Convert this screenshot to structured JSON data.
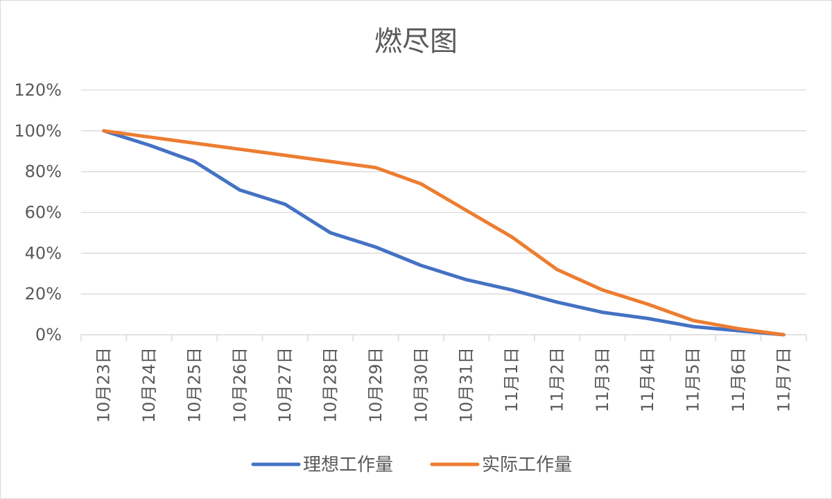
{
  "chart_data": {
    "type": "line",
    "title": "燃尽图",
    "categories": [
      "10月23日",
      "10月24日",
      "10月25日",
      "10月26日",
      "10月27日",
      "10月28日",
      "10月29日",
      "10月30日",
      "10月31日",
      "11月1日",
      "11月2日",
      "11月3日",
      "11月4日",
      "11月5日",
      "11月6日",
      "11月7日"
    ],
    "ylim": [
      0,
      120
    ],
    "y_ticks": [
      0,
      20,
      40,
      60,
      80,
      100,
      120
    ],
    "y_tick_labels": [
      "0%",
      "20%",
      "40%",
      "60%",
      "80%",
      "100%",
      "120%"
    ],
    "grid": true,
    "legend_position": "bottom",
    "series": [
      {
        "name": "理想工作量",
        "color": "#4472c4",
        "values": [
          100,
          93,
          85,
          71,
          64,
          50,
          43,
          34,
          27,
          22,
          16,
          11,
          8,
          4,
          2,
          0
        ]
      },
      {
        "name": "实际工作量",
        "color": "#ed7d31",
        "values": [
          100,
          97,
          94,
          91,
          88,
          85,
          82,
          74,
          61,
          48,
          32,
          22,
          15,
          7,
          3,
          0
        ]
      }
    ]
  }
}
